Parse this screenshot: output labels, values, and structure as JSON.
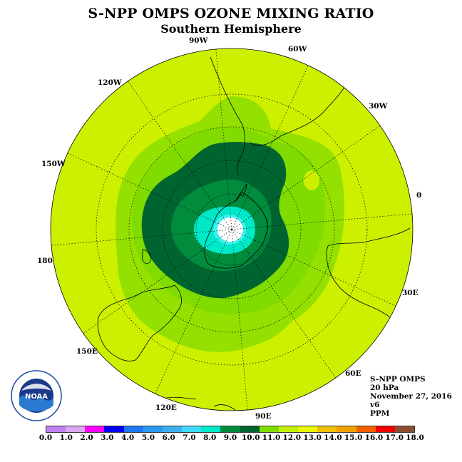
{
  "title": "S-NPP OMPS OZONE MIXING RATIO",
  "subtitle": "Southern Hemisphere",
  "longitude_labels": [
    "90W",
    "60W",
    "120W",
    "30W",
    "150W",
    "0",
    "180",
    "30E",
    "150E",
    "60E",
    "120E",
    "90E"
  ],
  "info": {
    "instrument": "S-NPP OMPS",
    "level": "20 hPa",
    "date": "November 27, 2016",
    "version": "v6",
    "units": "PPM"
  },
  "logo": {
    "text": "NOAA",
    "icon": "noaa-seal-icon"
  },
  "colorbar": {
    "tick_labels": [
      "0.0",
      "1.0",
      "2.0",
      "3.0",
      "4.0",
      "5.0",
      "6.0",
      "7.0",
      "8.0",
      "9.0",
      "10.0",
      "11.0",
      "12.0",
      "13.0",
      "14.0",
      "15.0",
      "16.0",
      "17.0",
      "18.0"
    ],
    "colors": [
      "#c080f0",
      "#d8a8f0",
      "#ff00ff",
      "#0000f0",
      "#1a78f0",
      "#2a98f0",
      "#3ab0f0",
      "#40d8f8",
      "#00e8c8",
      "#008c3c",
      "#006430",
      "#80dc00",
      "#c0f000",
      "#e8f800",
      "#f0c000",
      "#f0a000",
      "#f06000",
      "#f00000",
      "#8c5030"
    ]
  },
  "map": {
    "background_color": "#ccf000",
    "ozone_bands": [
      {
        "range": "11.0-12.0",
        "color": "#94e000"
      },
      {
        "range": "10.0-11.0",
        "color": "#80dc00"
      },
      {
        "range": "9.0-10.0",
        "color": "#006430"
      },
      {
        "range": "8.0-9.0",
        "color": "#008c3c"
      },
      {
        "range": "7.0-8.0",
        "color": "#00e8c8"
      },
      {
        "range": "6.0-7.0",
        "color": "#40f0f0"
      },
      {
        "range": "below 6.0",
        "color": "#ffffff"
      }
    ]
  }
}
